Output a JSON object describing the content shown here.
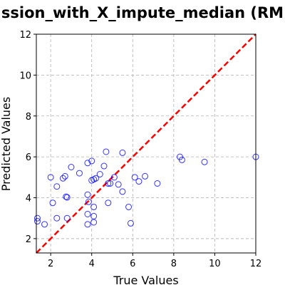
{
  "chart_data": {
    "type": "scatter",
    "title": "ssion_with_X_impute_median (RM",
    "xlabel": "True Values",
    "ylabel": "Predicted Values",
    "xlim": [
      1.3,
      12.0
    ],
    "ylim": [
      1.3,
      12.0
    ],
    "xticks": [
      2,
      4,
      6,
      8,
      10,
      12
    ],
    "yticks": [
      2,
      4,
      6,
      8,
      10,
      12
    ],
    "grid": true,
    "grid_style": "dashed",
    "point_style": "hollow-circle",
    "point_color": "#0000ff",
    "reference_line": {
      "style": "dashed",
      "color": "#ff0000",
      "from": [
        1.3,
        1.3
      ],
      "to": [
        12.0,
        12.0
      ]
    },
    "points": [
      {
        "x": 1.35,
        "y": 3.0
      },
      {
        "x": 1.35,
        "y": 2.85
      },
      {
        "x": 1.7,
        "y": 2.7
      },
      {
        "x": 2.0,
        "y": 5.0
      },
      {
        "x": 2.1,
        "y": 3.75
      },
      {
        "x": 2.3,
        "y": 4.55
      },
      {
        "x": 2.3,
        "y": 3.0
      },
      {
        "x": 2.6,
        "y": 4.95
      },
      {
        "x": 2.7,
        "y": 5.05
      },
      {
        "x": 2.75,
        "y": 4.05
      },
      {
        "x": 2.8,
        "y": 4.02
      },
      {
        "x": 2.8,
        "y": 3.0
      },
      {
        "x": 3.0,
        "y": 5.5
      },
      {
        "x": 3.4,
        "y": 5.2
      },
      {
        "x": 3.8,
        "y": 5.7
      },
      {
        "x": 3.8,
        "y": 4.15
      },
      {
        "x": 3.85,
        "y": 3.8
      },
      {
        "x": 3.8,
        "y": 3.2
      },
      {
        "x": 3.8,
        "y": 2.7
      },
      {
        "x": 4.0,
        "y": 5.8
      },
      {
        "x": 4.0,
        "y": 4.85
      },
      {
        "x": 4.1,
        "y": 4.9
      },
      {
        "x": 4.2,
        "y": 4.95
      },
      {
        "x": 4.1,
        "y": 3.55
      },
      {
        "x": 4.1,
        "y": 3.1
      },
      {
        "x": 4.1,
        "y": 2.8
      },
      {
        "x": 4.4,
        "y": 5.15
      },
      {
        "x": 4.6,
        "y": 5.55
      },
      {
        "x": 4.7,
        "y": 6.25
      },
      {
        "x": 4.8,
        "y": 4.7
      },
      {
        "x": 4.9,
        "y": 4.7
      },
      {
        "x": 4.8,
        "y": 3.75
      },
      {
        "x": 5.1,
        "y": 5.0
      },
      {
        "x": 5.3,
        "y": 4.65
      },
      {
        "x": 5.5,
        "y": 6.2
      },
      {
        "x": 5.5,
        "y": 4.3
      },
      {
        "x": 5.8,
        "y": 3.55
      },
      {
        "x": 5.9,
        "y": 2.75
      },
      {
        "x": 6.1,
        "y": 5.0
      },
      {
        "x": 6.3,
        "y": 4.8
      },
      {
        "x": 6.6,
        "y": 5.05
      },
      {
        "x": 7.2,
        "y": 4.7
      },
      {
        "x": 8.3,
        "y": 6.0
      },
      {
        "x": 8.4,
        "y": 5.85
      },
      {
        "x": 9.5,
        "y": 5.75
      },
      {
        "x": 12.0,
        "y": 6.0
      }
    ]
  }
}
